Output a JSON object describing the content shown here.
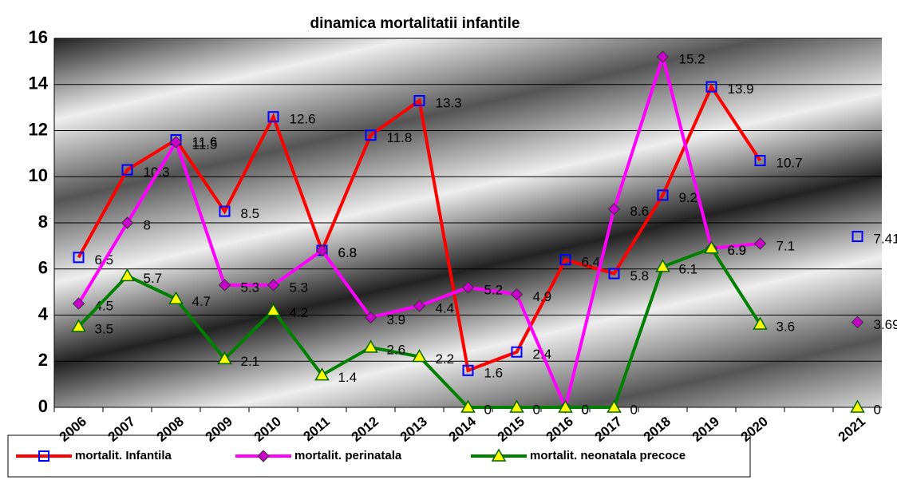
{
  "chart_data": {
    "type": "line",
    "title": "dinamica mortalitatii infantile",
    "categories": [
      "2006",
      "2007",
      "2008",
      "2009",
      "2010",
      "2011",
      "2012",
      "2013",
      "2014",
      "2015",
      "2016",
      "2017",
      "2018",
      "2019",
      "2020",
      null,
      "2021"
    ],
    "series": [
      {
        "name": "mortalit. Infantila",
        "color": "#ff0000",
        "marker": "square",
        "marker_color": "#0000ff",
        "values": [
          6.5,
          10.3,
          11.6,
          8.5,
          12.6,
          6.8,
          11.8,
          13.3,
          1.6,
          2.4,
          6.4,
          5.8,
          9.2,
          13.9,
          10.7,
          null,
          7.41
        ]
      },
      {
        "name": "mortalit. perinatala",
        "color": "#ff00ff",
        "marker": "diamond",
        "marker_color": "#cc00cc",
        "values": [
          4.5,
          8,
          11.5,
          5.3,
          5.3,
          6.8,
          3.9,
          4.4,
          5.2,
          4.9,
          0,
          8.6,
          15.2,
          6.9,
          7.1,
          null,
          3.69
        ]
      },
      {
        "name": "mortalit. neonatala precoce",
        "color": "#008000",
        "marker": "triangle",
        "marker_color": "#ffff00",
        "values": [
          3.5,
          5.7,
          4.7,
          2.1,
          4.2,
          1.4,
          2.6,
          2.2,
          0,
          0,
          0,
          0,
          6.1,
          6.9,
          3.6,
          null,
          0
        ]
      }
    ],
    "ylim": [
      0,
      16
    ],
    "yticks": [
      0,
      2,
      4,
      6,
      8,
      10,
      12,
      14,
      16
    ],
    "grid": true,
    "legend": "bottom"
  }
}
